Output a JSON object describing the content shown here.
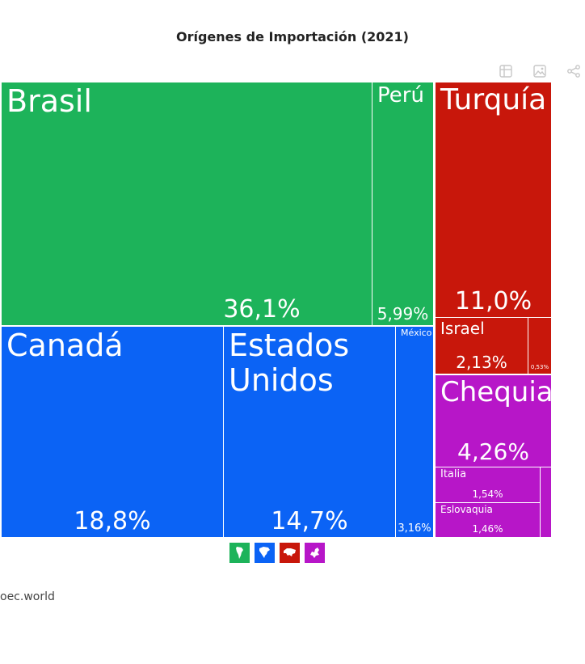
{
  "title": "Orígenes de Importación (2021)",
  "toolbar": [
    {
      "icon": "table-icon"
    },
    {
      "icon": "image-icon"
    },
    {
      "icon": "share-icon"
    }
  ],
  "colors": {
    "south_america": "#1db35a",
    "north_america": "#0b63f5",
    "asia": "#c8170b",
    "europe": "#b716c8"
  },
  "chart_data": {
    "type": "treemap",
    "title": "Orígenes de Importación (2021)",
    "unit": "%",
    "groups": [
      {
        "continent": "south_america",
        "items": [
          {
            "name": "Brasil",
            "value": 36.1,
            "label": "36,1%"
          },
          {
            "name": "Perú",
            "value": 5.99,
            "label": "5,99%"
          }
        ]
      },
      {
        "continent": "north_america",
        "items": [
          {
            "name": "Canadá",
            "value": 18.8,
            "label": "18,8%"
          },
          {
            "name": "Estados\nUnidos",
            "value": 14.7,
            "label": "14,7%"
          },
          {
            "name": "México",
            "value": 3.16,
            "label": "3,16%"
          }
        ]
      },
      {
        "continent": "asia",
        "items": [
          {
            "name": "Turquía",
            "value": 11.0,
            "label": "11,0%"
          },
          {
            "name": "Israel",
            "value": 2.13,
            "label": "2,13%"
          },
          {
            "name": "",
            "value": 0.53,
            "label": "0,53%"
          }
        ]
      },
      {
        "continent": "europe",
        "items": [
          {
            "name": "Chequia",
            "value": 4.26,
            "label": "4,26%"
          },
          {
            "name": "Italia",
            "value": 1.54,
            "label": "1,54%"
          },
          {
            "name": "Eslovaquia",
            "value": 1.46,
            "label": "1,46%"
          },
          {
            "name": "",
            "value": 0.3,
            "label": ""
          }
        ]
      }
    ]
  },
  "legend": [
    {
      "continent": "south_america",
      "icon": "south-america-icon"
    },
    {
      "continent": "north_america",
      "icon": "north-america-icon"
    },
    {
      "continent": "asia",
      "icon": "asia-icon"
    },
    {
      "continent": "europe",
      "icon": "europe-icon"
    }
  ],
  "source": "oec.world"
}
